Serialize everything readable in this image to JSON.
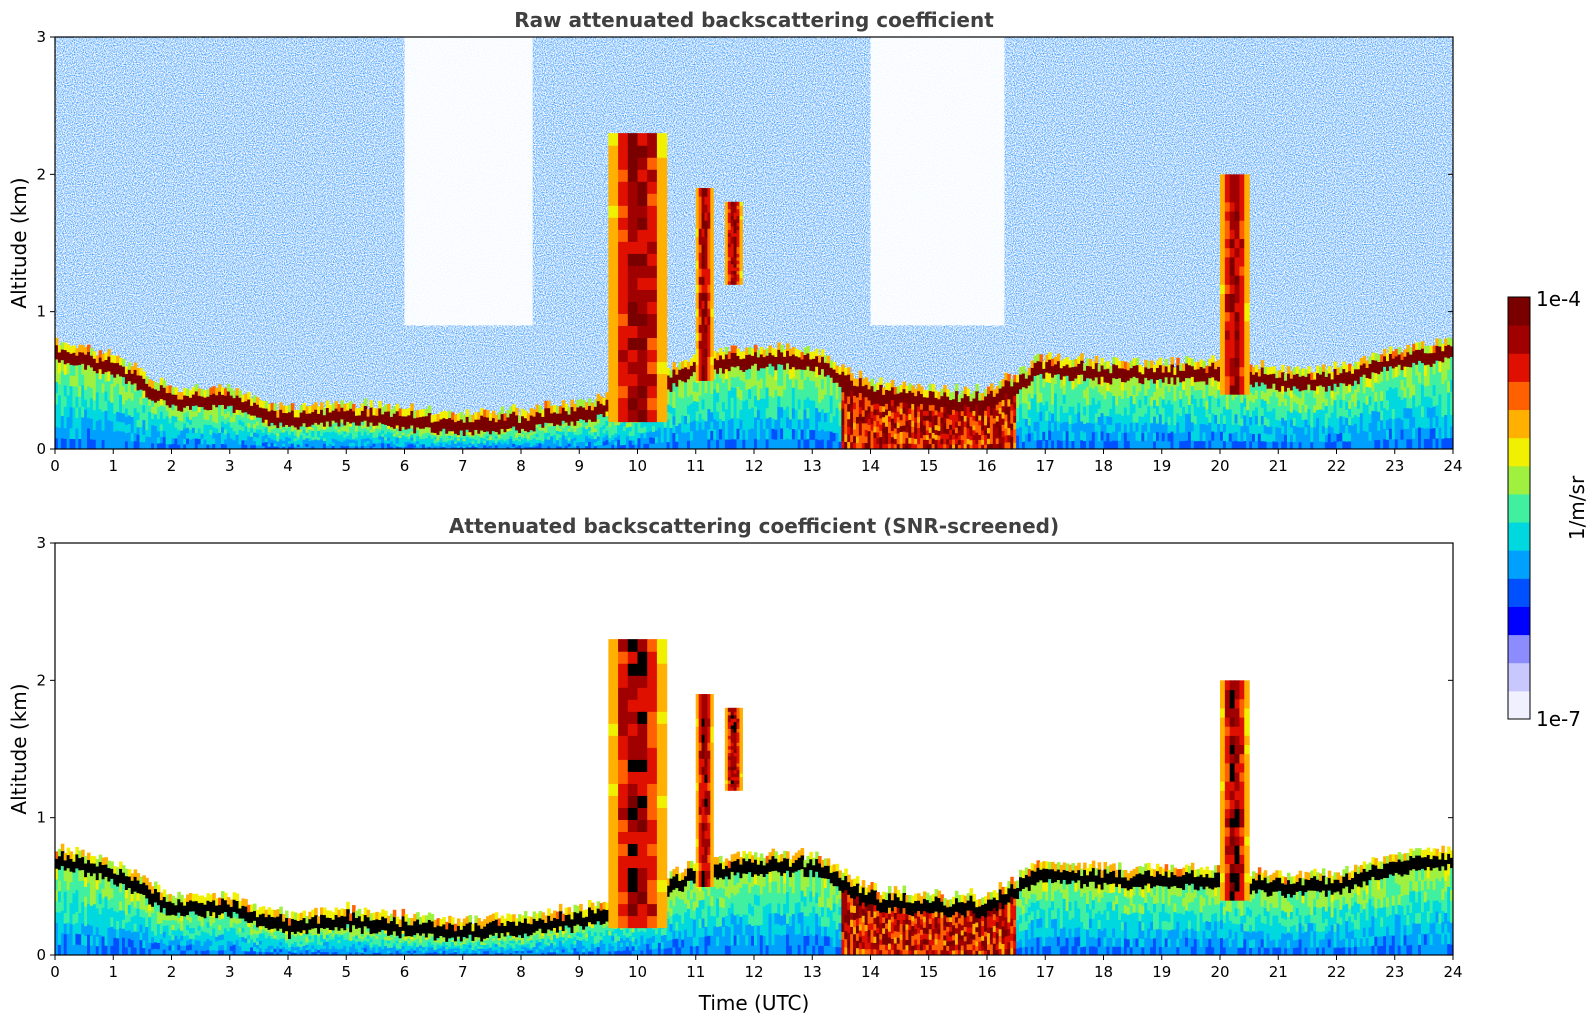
{
  "chart_data": [
    {
      "type": "heatmap",
      "title": "Raw attenuated backscattering coefficient",
      "xlabel": "",
      "ylabel": "Altitude (km)",
      "xlim": [
        0,
        24
      ],
      "ylim": [
        0,
        3
      ],
      "xticks": [
        "0",
        "1",
        "2",
        "3",
        "4",
        "5",
        "6",
        "7",
        "8",
        "9",
        "10",
        "11",
        "12",
        "13",
        "14",
        "15",
        "16",
        "17",
        "18",
        "19",
        "20",
        "21",
        "22",
        "23",
        "24"
      ],
      "yticks": [
        "0",
        "1",
        "2",
        "3"
      ],
      "features": {
        "boundary_layer_top_km": [
          [
            0,
            0.65
          ],
          [
            1,
            0.55
          ],
          [
            2,
            0.3
          ],
          [
            3,
            0.3
          ],
          [
            4,
            0.15
          ],
          [
            5,
            0.2
          ],
          [
            6,
            0.15
          ],
          [
            7,
            0.12
          ],
          [
            8,
            0.15
          ],
          [
            9,
            0.2
          ],
          [
            10,
            0.3
          ],
          [
            11,
            0.55
          ],
          [
            12,
            0.6
          ],
          [
            13,
            0.6
          ],
          [
            14,
            0.35
          ],
          [
            15,
            0.3
          ],
          [
            16,
            0.3
          ],
          [
            17,
            0.55
          ],
          [
            18,
            0.5
          ],
          [
            19,
            0.5
          ],
          [
            20,
            0.5
          ],
          [
            21,
            0.45
          ],
          [
            22,
            0.45
          ],
          [
            23,
            0.6
          ],
          [
            24,
            0.65
          ]
        ],
        "cloud_plumes": [
          [
            9.5,
            10.5,
            0.2,
            2.3
          ],
          [
            11.0,
            11.3,
            0.5,
            1.9
          ],
          [
            11.5,
            11.8,
            1.2,
            1.8
          ],
          [
            20.0,
            20.5,
            0.4,
            2.0
          ]
        ]
      }
    },
    {
      "type": "heatmap",
      "title": "Attenuated backscattering coefficient (SNR-screened)",
      "xlabel": "Time (UTC)",
      "ylabel": "Altitude (km)",
      "xlim": [
        0,
        24
      ],
      "ylim": [
        0,
        3
      ],
      "xticks": [
        "0",
        "1",
        "2",
        "3",
        "4",
        "5",
        "6",
        "7",
        "8",
        "9",
        "10",
        "11",
        "12",
        "13",
        "14",
        "15",
        "16",
        "17",
        "18",
        "19",
        "20",
        "21",
        "22",
        "23",
        "24"
      ],
      "yticks": [
        "0",
        "1",
        "2",
        "3"
      ]
    }
  ],
  "colorbar": {
    "label": "1/m/sr",
    "max_label": "1e-4",
    "min_label": "1e-7",
    "vmin": 1e-07,
    "vmax": 0.0001,
    "scale": "log",
    "colors": [
      "#f0f0ff",
      "#c8c8ff",
      "#8c8cff",
      "#0000ff",
      "#0050ff",
      "#00a0ff",
      "#00d8e0",
      "#40f0a0",
      "#a0f040",
      "#f0f000",
      "#ffb000",
      "#ff6000",
      "#e01000",
      "#a00000",
      "#7a0000"
    ]
  }
}
